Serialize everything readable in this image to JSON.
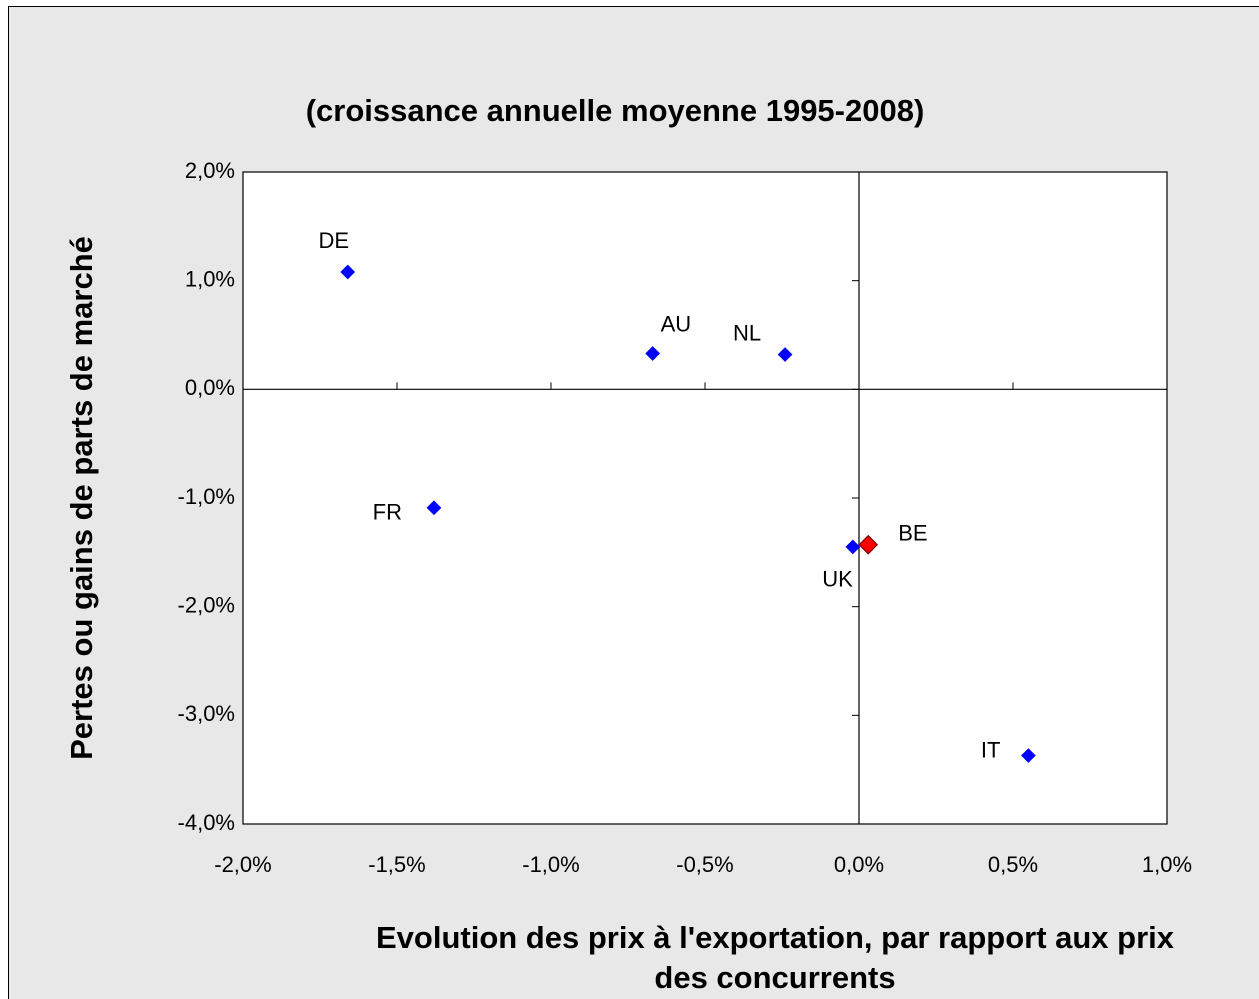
{
  "chart_data": {
    "type": "scatter",
    "title": "(croissance annuelle moyenne 1995-2008)",
    "ylabel": "Pertes ou gains de parts de marché",
    "xlabel": [
      "Evolution des prix à l'exportation, par rapport aux prix",
      "des concurrents"
    ],
    "point_labels": [
      "DE",
      "AU",
      "NL",
      "FR",
      "UK",
      "BE",
      "IT"
    ],
    "x": [
      -1.66,
      -0.67,
      -0.24,
      -1.38,
      -0.02,
      0.03,
      0.55
    ],
    "values": [
      1.08,
      0.33,
      0.32,
      -1.09,
      -1.45,
      -1.43,
      -3.37
    ],
    "colors": [
      "#0000ff",
      "#0000ff",
      "#0000ff",
      "#0000ff",
      "#0000ff",
      "#ff0000",
      "#0000ff"
    ],
    "xlim": [
      -2,
      1
    ],
    "ylim": [
      -4,
      2
    ],
    "xticks": [
      {
        "value": -2,
        "label": "-2,0%"
      },
      {
        "value": -1.5,
        "label": "-1,5%"
      },
      {
        "value": -1,
        "label": "-1,0%"
      },
      {
        "value": -0.5,
        "label": "-0,5%"
      },
      {
        "value": 0,
        "label": "0,0%"
      },
      {
        "value": 0.5,
        "label": "0,5%"
      },
      {
        "value": 1,
        "label": "1,0%"
      }
    ],
    "yticks": [
      {
        "value": 2,
        "label": "2,0%"
      },
      {
        "value": 1,
        "label": "1,0%"
      },
      {
        "value": 0,
        "label": "0,0%"
      },
      {
        "value": -1,
        "label": "-1,0%"
      },
      {
        "value": -2,
        "label": "-2,0%"
      },
      {
        "value": -3,
        "label": "-3,0%"
      },
      {
        "value": -4,
        "label": "-4,0%"
      }
    ]
  }
}
